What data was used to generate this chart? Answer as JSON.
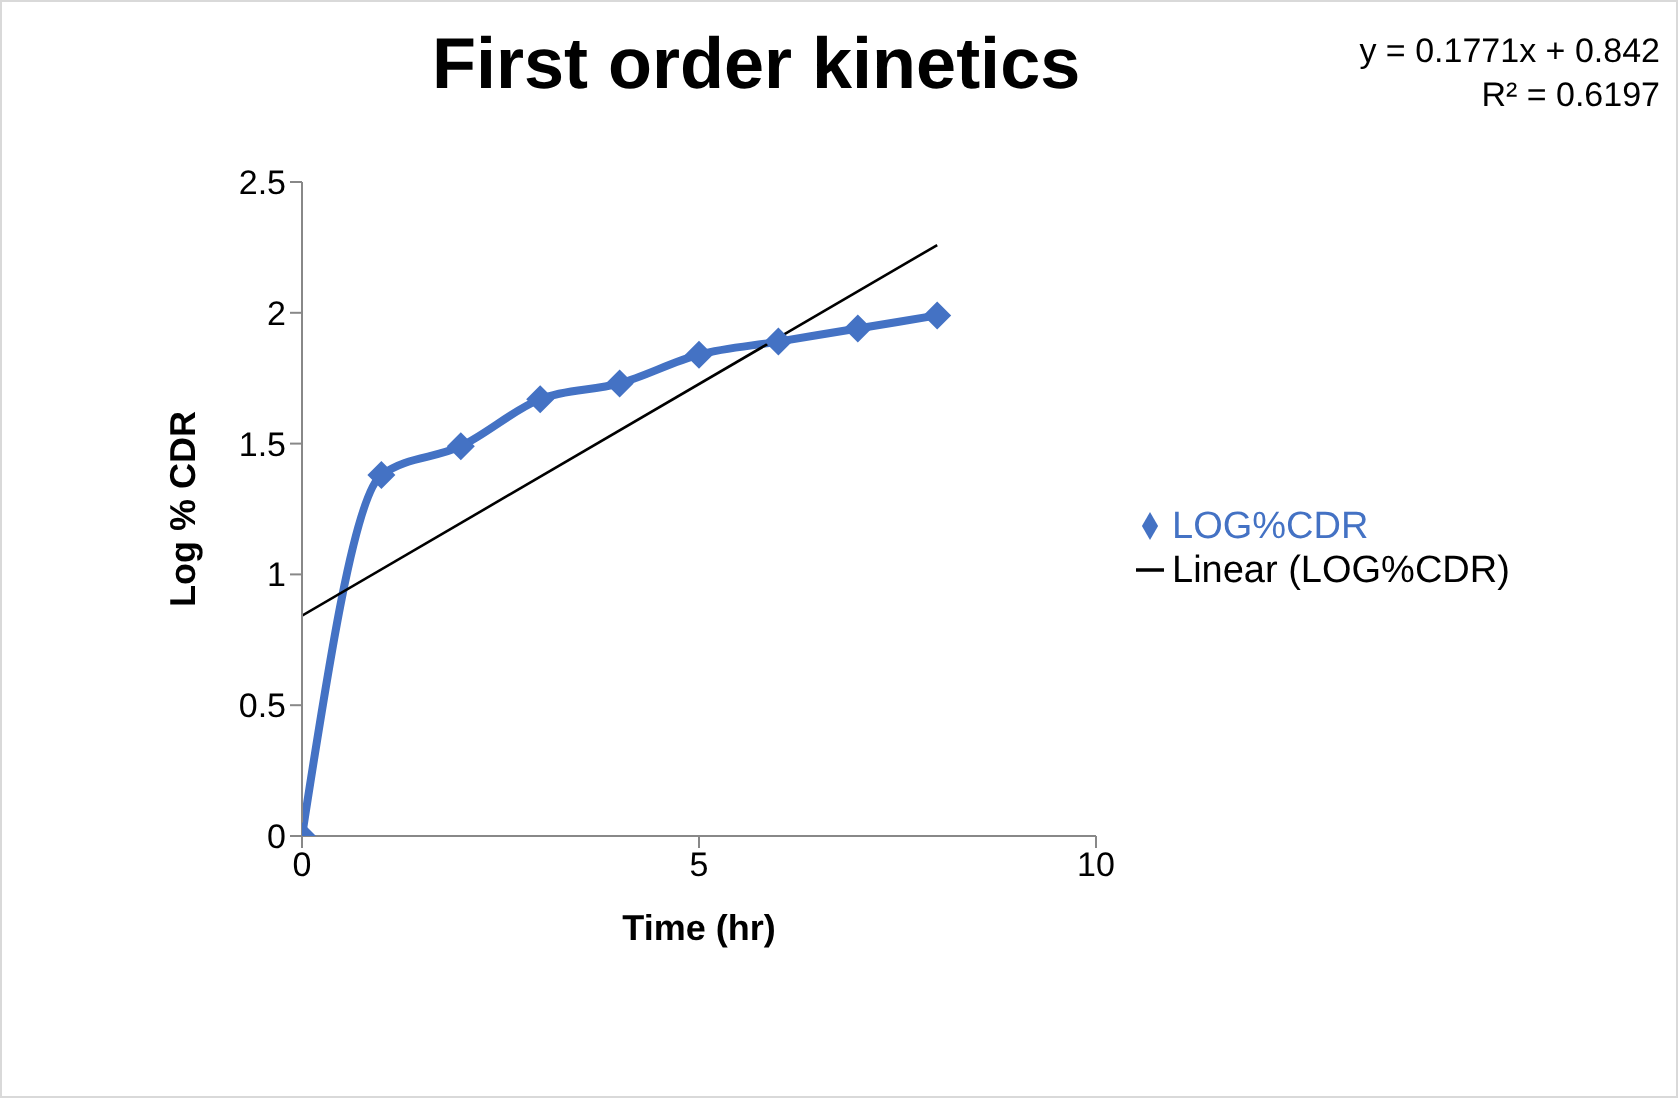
{
  "chart_data": {
    "type": "line",
    "title": "First order kinetics",
    "xlabel": "Time (hr)",
    "ylabel": "Log % CDR",
    "annotations": [
      "y = 0.1771x + 0.842",
      "R² = 0.6197"
    ],
    "x": [
      0,
      1,
      2,
      3,
      4,
      5,
      6,
      7,
      8
    ],
    "series": [
      {
        "name": "LOG%CDR",
        "color": "#4472c4",
        "values": [
          0,
          1.38,
          1.49,
          1.67,
          1.73,
          1.84,
          1.89,
          1.94,
          1.99
        ],
        "marker": "diamond"
      },
      {
        "name": "Linear (LOG%CDR)",
        "color": "#000000",
        "type": "line",
        "x": [
          0,
          8
        ],
        "values": [
          0.842,
          2.259
        ],
        "marker": "none"
      }
    ],
    "xlim": [
      0,
      10
    ],
    "xticks": [
      0,
      5,
      10
    ],
    "ylim": [
      0,
      2.5
    ],
    "yticks": [
      0,
      0.5,
      1,
      1.5,
      2,
      2.5
    ],
    "grid": false,
    "legend": "right",
    "line_style": "solid"
  }
}
